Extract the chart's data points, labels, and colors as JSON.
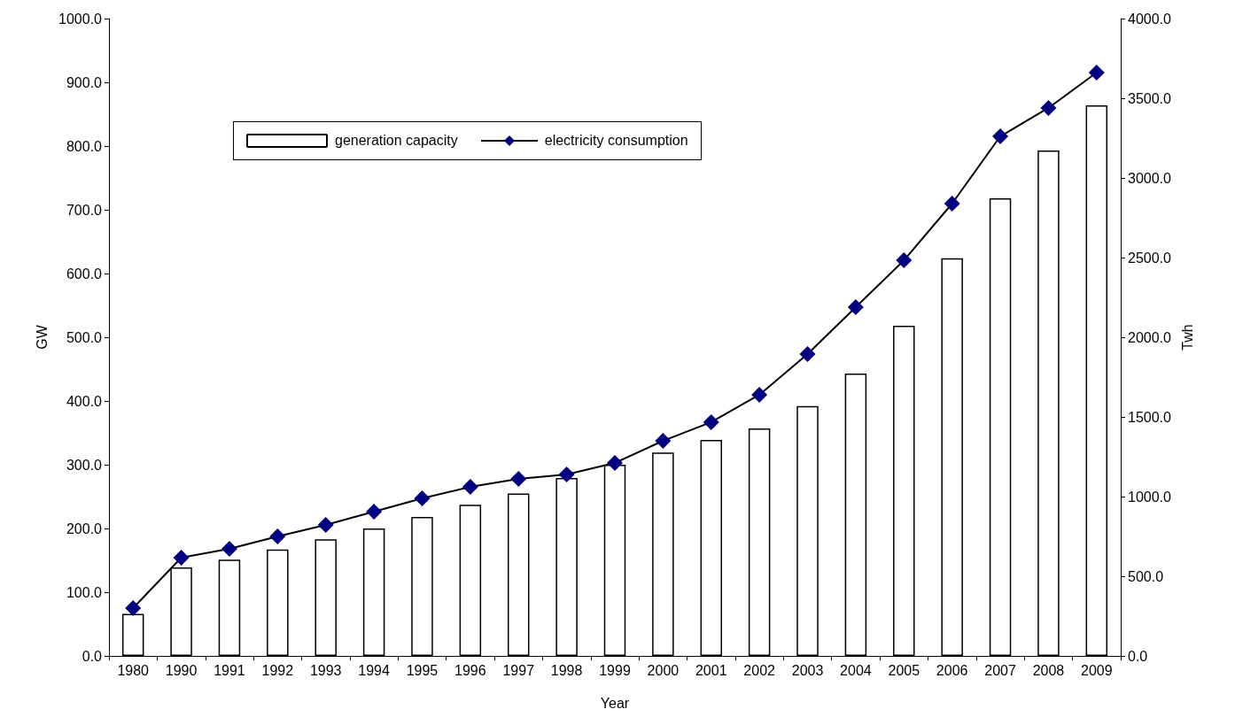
{
  "chart_data": {
    "type": "bar",
    "xlabel": "Year",
    "ylabel": "GW",
    "y2label": "Twh",
    "categories": [
      "1980",
      "1990",
      "1991",
      "1992",
      "1993",
      "1994",
      "1995",
      "1996",
      "1997",
      "1998",
      "1999",
      "2000",
      "2001",
      "2002",
      "2003",
      "2004",
      "2005",
      "2006",
      "2007",
      "2008",
      "2009"
    ],
    "series": [
      {
        "name": "generation capacity",
        "color": "#ffffff",
        "values": [
          66,
          139,
          151,
          167,
          183,
          200,
          218,
          237,
          255,
          279,
          300,
          319,
          339,
          357,
          392,
          443,
          518,
          624,
          718,
          793,
          864
        ]
      },
      {
        "name": "electricity consumption",
        "type": "line",
        "axis": "y2",
        "color": "#000080",
        "marker": "diamond",
        "values": [
          300,
          617,
          672,
          750,
          822,
          906,
          989,
          1061,
          1111,
          1139,
          1211,
          1350,
          1467,
          1639,
          1894,
          2189,
          2483,
          2839,
          3261,
          3439,
          3661
        ]
      }
    ],
    "ylim": [
      0,
      1000
    ],
    "yticks": [
      {
        "value": 0,
        "label": "0.0"
      },
      {
        "value": 100,
        "label": "100.0"
      },
      {
        "value": 200,
        "label": "200.0"
      },
      {
        "value": 300,
        "label": "300.0"
      },
      {
        "value": 400,
        "label": "400.0"
      },
      {
        "value": 500,
        "label": "500.0"
      },
      {
        "value": 600,
        "label": "600.0"
      },
      {
        "value": 700,
        "label": "700.0"
      },
      {
        "value": 800,
        "label": "800.0"
      },
      {
        "value": 900,
        "label": "900.0"
      },
      {
        "value": 1000,
        "label": "1000.0"
      }
    ],
    "y2lim": [
      0,
      4000
    ],
    "y2ticks": [
      {
        "value": 0,
        "label": "0.0"
      },
      {
        "value": 500,
        "label": "500.0"
      },
      {
        "value": 1000,
        "label": "1000.0"
      },
      {
        "value": 1500,
        "label": "1500.0"
      },
      {
        "value": 2000,
        "label": "2000.0"
      },
      {
        "value": 2500,
        "label": "2500.0"
      },
      {
        "value": 3000,
        "label": "3000.0"
      },
      {
        "value": 3500,
        "label": "3500.0"
      },
      {
        "value": 4000,
        "label": "4000.0"
      }
    ],
    "grid": false,
    "legend": "top left"
  }
}
